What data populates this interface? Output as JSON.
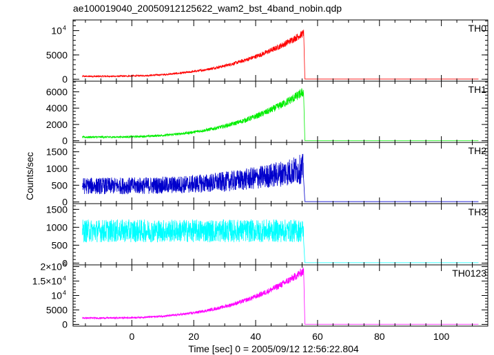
{
  "title": "ae100019040_20050912125622_wam2_bst_4band_nobin.qdp",
  "ylabel": "Counts/sec",
  "xlabel": "Time [sec] 0 = 2005/09/12 12:56:22.804",
  "x_ticks": [
    {
      "value": 0,
      "label": "0"
    },
    {
      "value": 20,
      "label": "20"
    },
    {
      "value": 40,
      "label": "40"
    },
    {
      "value": 60,
      "label": "60"
    },
    {
      "value": 80,
      "label": "80"
    },
    {
      "value": 100,
      "label": "100"
    }
  ],
  "chart_data": {
    "type": "line",
    "xlim": [
      -19,
      115
    ],
    "x_range": [
      -16,
      112
    ],
    "drop_time": 55.5,
    "panels": [
      {
        "name": "TH0",
        "color": "#ff0000",
        "ylim": [
          -400,
          12200
        ],
        "ticks": [
          {
            "value": 0,
            "label": "0"
          },
          {
            "value": 5000,
            "label": "5000"
          },
          {
            "value": 10000,
            "label": "10",
            "exp": "4"
          }
        ],
        "start": 600,
        "peak": 9500,
        "noise_start": 150,
        "noise_peak": 800,
        "after": 30
      },
      {
        "name": "TH1",
        "color": "#00ee00",
        "ylim": [
          -200,
          7300
        ],
        "ticks": [
          {
            "value": 0,
            "label": "0"
          },
          {
            "value": 2000,
            "label": "2000"
          },
          {
            "value": 4000,
            "label": "4000"
          },
          {
            "value": 6000,
            "label": "6000"
          }
        ],
        "start": 450,
        "peak": 6000,
        "noise_start": 120,
        "noise_peak": 600,
        "after": 20
      },
      {
        "name": "TH2",
        "color": "#0000cc",
        "ylim": [
          -50,
          1780
        ],
        "ticks": [
          {
            "value": 0,
            "label": "0"
          },
          {
            "value": 500,
            "label": "500"
          },
          {
            "value": 1000,
            "label": "1000"
          },
          {
            "value": 1500,
            "label": "1500"
          }
        ],
        "start": 480,
        "peak": 1000,
        "noise_start": 250,
        "noise_peak": 450,
        "after": 10
      },
      {
        "name": "TH3",
        "color": "#00ffff",
        "ylim": [
          -50,
          1660
        ],
        "ticks": [
          {
            "value": 0,
            "label": "0"
          },
          {
            "value": 500,
            "label": "500"
          },
          {
            "value": 1000,
            "label": "1000"
          },
          {
            "value": 1500,
            "label": "1500"
          }
        ],
        "start": 900,
        "peak": 900,
        "noise_start": 320,
        "noise_peak": 320,
        "after": 10
      },
      {
        "name": "TH0123",
        "color": "#ff00ff",
        "ylim": [
          -600,
          20600
        ],
        "ticks": [
          {
            "value": 0,
            "label": "0"
          },
          {
            "value": 5000,
            "label": "5000"
          },
          {
            "value": 10000,
            "label": "10",
            "exp": "4"
          },
          {
            "value": 15000,
            "label": "1.5×10",
            "exp": "4"
          },
          {
            "value": 20000,
            "label": "2×10",
            "exp": "4"
          }
        ],
        "start": 2200,
        "peak": 18500,
        "noise_start": 300,
        "noise_peak": 1500,
        "after": 60
      }
    ]
  }
}
